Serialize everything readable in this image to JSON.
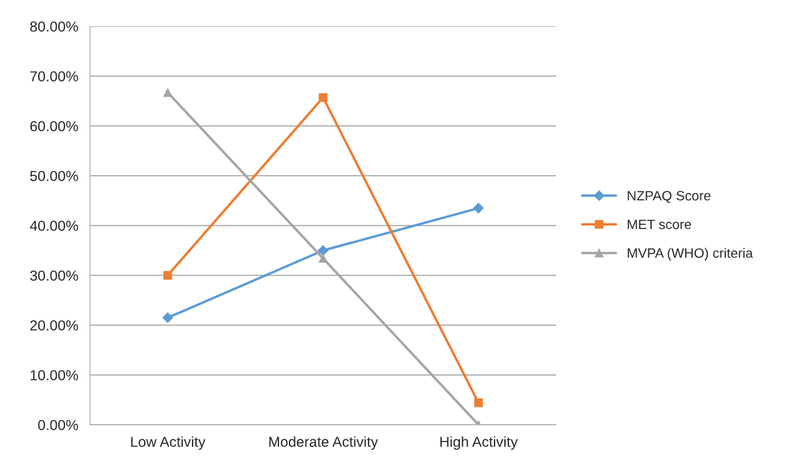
{
  "chart_data": {
    "type": "line",
    "categories": [
      "Low Activity",
      "Moderate Activity",
      "High Activity"
    ],
    "series": [
      {
        "name": "NZPAQ Score",
        "color": "#5b9bd5",
        "marker": "diamond",
        "values": [
          21.5,
          35.0,
          43.5
        ]
      },
      {
        "name": "MET score",
        "color": "#ed7d31",
        "marker": "square",
        "values": [
          30.0,
          65.7,
          4.4
        ]
      },
      {
        "name": "MVPA (WHO) criteria",
        "color": "#a5a5a5",
        "marker": "triangle",
        "values": [
          66.7,
          33.4,
          0.0
        ]
      }
    ],
    "ylim": [
      0,
      80
    ],
    "yticks": [
      {
        "value": 0,
        "label": "0.00%"
      },
      {
        "value": 10,
        "label": "10.00%"
      },
      {
        "value": 20,
        "label": "20.00%"
      },
      {
        "value": 30,
        "label": "30.00%"
      },
      {
        "value": 40,
        "label": "40.00%"
      },
      {
        "value": 50,
        "label": "50.00%"
      },
      {
        "value": 60,
        "label": "60.00%"
      },
      {
        "value": 70,
        "label": "70.00%"
      },
      {
        "value": 80,
        "label": "80.00%"
      }
    ],
    "grid": "y",
    "legend": "right",
    "line_style": "solid"
  }
}
